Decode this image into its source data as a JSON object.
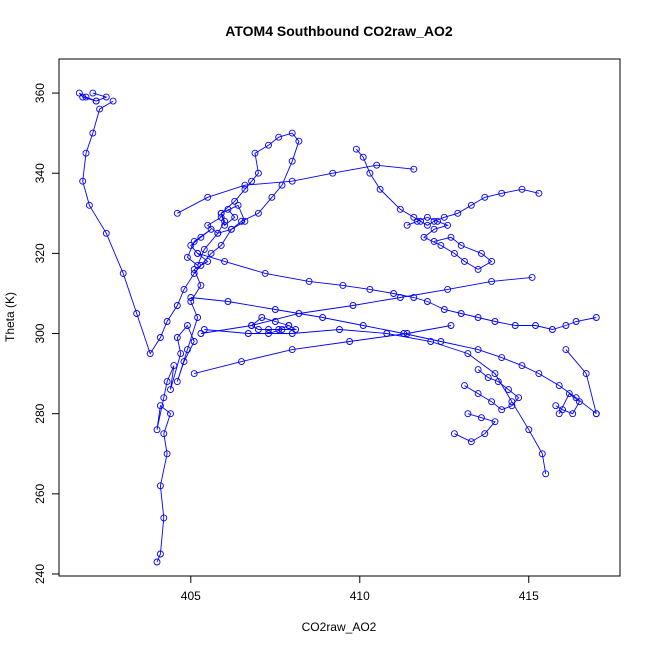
{
  "chart_data": {
    "type": "scatter",
    "mode": "lines+markers",
    "title": "ATOM4 Southbound CO2raw_AO2",
    "xlabel": "CO2raw_AO2",
    "ylabel": "Theta (K)",
    "xlim": [
      401.1,
      417.7
    ],
    "ylim": [
      239.5,
      368.5
    ],
    "xticks": [
      405,
      410,
      415
    ],
    "yticks": [
      240,
      260,
      280,
      300,
      320,
      340,
      360
    ],
    "grid": false,
    "legend": "none",
    "colors": {
      "series": "#0000ff",
      "axes": "#000000"
    },
    "series": [
      {
        "x": [
          404.0,
          404.1,
          404.2,
          404.1,
          404.3,
          404.2,
          404.4,
          404.1,
          404.0,
          404.2,
          404.3,
          404.5,
          404.4,
          404.7,
          404.6,
          404.9,
          405.1,
          404.8,
          404.6,
          404.9,
          405.2,
          405.0,
          405.3,
          405.1,
          405.5,
          405.2,
          405.0,
          405.3,
          405.6,
          405.1,
          404.9,
          405.2,
          405.4,
          405.8,
          406.0,
          405.9,
          406.3,
          406.6,
          406.8,
          407.0,
          406.9,
          407.3,
          407.6,
          408.0,
          408.2,
          408.0,
          407.7,
          407.4,
          407.0,
          406.5,
          406.2,
          405.9,
          405.6,
          405.3,
          405.1,
          404.8,
          404.6,
          404.3,
          404.1,
          403.8,
          403.4,
          403.0,
          402.5,
          402.0,
          401.8,
          401.9,
          402.1,
          402.3,
          402.7
        ],
        "y": [
          243,
          245,
          254,
          262,
          270,
          275,
          280,
          282,
          276,
          284,
          288,
          292,
          286,
          295,
          299,
          302,
          298,
          293,
          288,
          296,
          304,
          308,
          312,
          316,
          318,
          320,
          322,
          324,
          326,
          323,
          319,
          317,
          321,
          325,
          328,
          330,
          333,
          336,
          338,
          340,
          345,
          347,
          349,
          350,
          348,
          343,
          337,
          334,
          330,
          328,
          326,
          322,
          320,
          317,
          315,
          311,
          307,
          303,
          299,
          295,
          305,
          315,
          325,
          332,
          338,
          345,
          350,
          356,
          358
        ]
      },
      {
        "x": [
          402.2,
          401.8,
          401.7,
          401.9,
          402.2,
          402.5,
          402.1
        ],
        "y": [
          358,
          359,
          360,
          359,
          358,
          359,
          360
        ]
      },
      {
        "x": [
          405.2,
          406.0,
          407.2,
          408.5,
          409.5,
          410.3,
          411.0,
          411.6,
          412.0,
          412.5,
          413.0,
          413.5,
          414.0,
          414.6,
          415.2,
          415.7,
          416.1,
          416.4,
          417.0
        ],
        "y": [
          320,
          318,
          315,
          313,
          312,
          311,
          310,
          309,
          308,
          306,
          305,
          304,
          303,
          302,
          302,
          301,
          302,
          303,
          304
        ]
      },
      {
        "x": [
          405.0,
          406.1,
          407.5,
          408.9,
          410.1,
          411.3,
          412.4,
          413.5,
          414.2,
          414.8,
          415.3,
          415.9,
          416.4,
          417.0
        ],
        "y": [
          309,
          308,
          306,
          304,
          302,
          300,
          298,
          296,
          294,
          292,
          290,
          287,
          284,
          280
        ]
      },
      {
        "x": [
          405.4,
          406.7,
          408.0,
          409.4,
          410.8,
          412.1,
          413.2,
          414.0,
          414.5,
          415.0,
          415.4,
          415.5
        ],
        "y": [
          301,
          300,
          300,
          301,
          300,
          298,
          295,
          290,
          283,
          276,
          270,
          265
        ]
      },
      {
        "x": [
          409.9,
          410.1,
          410.3,
          410.6,
          411.2,
          411.6,
          411.8,
          412.0,
          412.2,
          412.5,
          412.9,
          413.3,
          413.7,
          414.2,
          414.8,
          415.3
        ],
        "y": [
          346,
          344,
          340,
          336,
          331,
          329,
          328,
          327,
          328,
          329,
          330,
          332,
          334,
          335,
          336,
          335
        ]
      },
      {
        "x": [
          407.9,
          407.6,
          407.3,
          407.0,
          406.8,
          407.1,
          407.5,
          407.9,
          408.1,
          407.7,
          407.3
        ],
        "y": [
          302,
          301,
          301,
          301,
          302,
          304,
          303,
          302,
          301,
          301,
          300
        ]
      },
      {
        "x": [
          406.1,
          406.3,
          406.0,
          405.9,
          406.4,
          406.6,
          406.2,
          405.8,
          405.5,
          405.9
        ],
        "y": [
          331,
          329,
          327,
          330,
          332,
          328,
          326,
          325,
          327,
          329
        ]
      },
      {
        "x": [
          411.4,
          411.7,
          412.0,
          412.3,
          412.6,
          412.2,
          411.9,
          412.4,
          412.8,
          413.1,
          413.5,
          413.9,
          413.6,
          413.0,
          412.7,
          412.2
        ],
        "y": [
          327,
          328,
          329,
          328,
          327,
          326,
          324,
          322,
          320,
          318,
          316,
          318,
          320,
          322,
          324,
          323
        ]
      },
      {
        "x": [
          413.1,
          413.5,
          413.9,
          414.2,
          414.5,
          414.7,
          414.4,
          414.1,
          413.8,
          413.5
        ],
        "y": [
          287,
          285,
          283,
          281,
          282,
          284,
          286,
          288,
          289,
          291
        ]
      },
      {
        "x": [
          405.1,
          406.5,
          408.0,
          409.7,
          411.4,
          412.7
        ],
        "y": [
          290,
          293,
          296,
          298,
          300,
          302
        ]
      },
      {
        "x": [
          404.6,
          405.5,
          406.6,
          408.0,
          409.2,
          410.5,
          411.6
        ],
        "y": [
          330,
          334,
          337,
          338,
          340,
          342,
          341
        ]
      },
      {
        "x": [
          413.2,
          413.6,
          414.0,
          413.7,
          413.3,
          412.8
        ],
        "y": [
          280,
          279,
          278,
          275,
          273,
          275
        ]
      },
      {
        "x": [
          415.8,
          416.0,
          416.3,
          416.5,
          416.2,
          415.9
        ],
        "y": [
          282,
          281,
          280,
          283,
          285,
          280
        ]
      },
      {
        "x": [
          416.1,
          416.7,
          417.0
        ],
        "y": [
          296,
          290,
          280
        ]
      },
      {
        "x": [
          405.3,
          406.8,
          408.2,
          409.8,
          411.2,
          412.6,
          413.9,
          415.1
        ],
        "y": [
          300,
          302,
          305,
          307,
          309,
          311,
          313,
          314
        ]
      }
    ]
  }
}
